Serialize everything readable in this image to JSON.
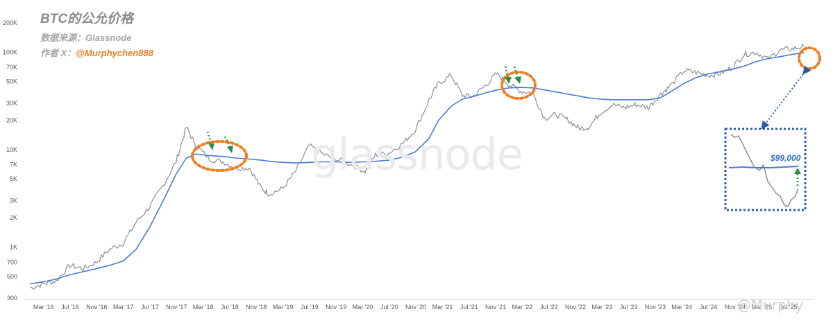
{
  "chart_data": {
    "type": "line",
    "title": "BTC的公允价格",
    "source": "数据来源：Glassnode",
    "author_label": "作者 X：",
    "author_handle": "@Murphychen888",
    "y_scale": "log",
    "ylim": [
      300,
      200000
    ],
    "y_ticks": [
      300,
      500,
      700,
      1000,
      2000,
      3000,
      5000,
      7000,
      10000,
      20000,
      30000,
      50000,
      70000,
      100000,
      200000
    ],
    "y_tick_labels": [
      "300",
      "500",
      "700",
      "1K",
      "2K",
      "3K",
      "5K",
      "7K",
      "10K",
      "20K",
      "30K",
      "50K",
      "70K",
      "100K",
      "200K"
    ],
    "x_tick_labels": [
      "Mar '16",
      "Jul '16",
      "Nov '16",
      "Mar '17",
      "Jul '17",
      "Nov '17",
      "Mar '18",
      "Jul '18",
      "Nov '18",
      "Mar '19",
      "Jul '19",
      "Nov '19",
      "Mar '20",
      "Jul '20",
      "Nov '20",
      "Mar '21",
      "Jul '21",
      "Nov '21",
      "Mar '22",
      "Jul '22",
      "Nov '22",
      "Mar '23",
      "Jul '23",
      "Nov '23",
      "Mar '24",
      "Jul '24",
      "Nov '24",
      "Mar '25",
      "Jul '25"
    ],
    "grid": false,
    "x": [
      2016.0,
      2016.17,
      2016.33,
      2016.5,
      2016.67,
      2016.83,
      2017.0,
      2017.17,
      2017.33,
      2017.5,
      2017.67,
      2017.83,
      2017.96,
      2018.08,
      2018.25,
      2018.42,
      2018.58,
      2018.75,
      2018.9,
      2019.0,
      2019.17,
      2019.33,
      2019.5,
      2019.67,
      2019.83,
      2020.0,
      2020.2,
      2020.33,
      2020.5,
      2020.67,
      2020.83,
      2021.0,
      2021.12,
      2021.28,
      2021.42,
      2021.55,
      2021.7,
      2021.85,
      2022.0,
      2022.15,
      2022.3,
      2022.45,
      2022.6,
      2022.75,
      2022.88,
      2023.0,
      2023.15,
      2023.3,
      2023.45,
      2023.6,
      2023.75,
      2023.9,
      2024.0,
      2024.2,
      2024.35,
      2024.5,
      2024.65,
      2024.8,
      2024.95,
      2025.1,
      2025.25,
      2025.4,
      2025.55,
      2025.7
    ],
    "series": [
      {
        "values": [
          380,
          420,
          450,
          650,
          600,
          700,
          950,
          1100,
          1800,
          2600,
          4300,
          7500,
          17000,
          11000,
          8000,
          7500,
          6500,
          6500,
          4000,
          3500,
          4000,
          6000,
          11000,
          9000,
          8000,
          7200,
          6000,
          8800,
          9300,
          11500,
          16000,
          32000,
          48000,
          58000,
          36000,
          35000,
          45000,
          60000,
          47000,
          40000,
          38000,
          21000,
          23000,
          20000,
          16500,
          17000,
          24000,
          29000,
          27000,
          29000,
          27000,
          37000,
          43000,
          65000,
          62000,
          58000,
          60000,
          70000,
          95000,
          100000,
          85000,
          105000,
          108000,
          115000
        ],
        "color": "#8a8f94"
      },
      {
        "values": [
          420,
          440,
          470,
          520,
          560,
          600,
          650,
          720,
          950,
          1600,
          3000,
          5600,
          8200,
          9000,
          8700,
          8500,
          8200,
          8000,
          7800,
          7600,
          7400,
          7300,
          7400,
          7500,
          7500,
          7400,
          7500,
          7600,
          7800,
          8400,
          9500,
          13000,
          20000,
          28000,
          33000,
          35000,
          38000,
          41000,
          43000,
          43500,
          43000,
          41000,
          39000,
          37000,
          35500,
          34000,
          33000,
          32500,
          32500,
          32500,
          32500,
          34000,
          38000,
          48000,
          55000,
          60000,
          63000,
          67000,
          72000,
          80000,
          86000,
          90000,
          95000,
          99000
        ],
        "color": "#4a78d6"
      }
    ],
    "annotation_value": "$99,000",
    "watermark": "glassnode",
    "credit": "@Murphy"
  }
}
